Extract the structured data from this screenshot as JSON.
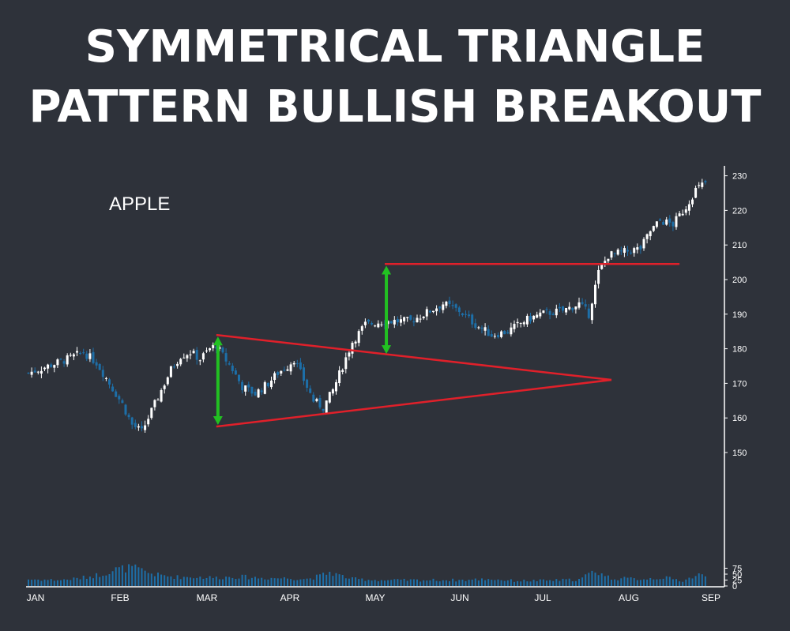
{
  "title": {
    "line1": "SYMMETRICAL TRIANGLE",
    "line2": "PATTERN BULLISH BREAKOUT"
  },
  "colors": {
    "background": "#2e323a",
    "text": "#ffffff",
    "up_candle": "#ffffff",
    "down_candle": "#1d6fa8",
    "volume_bar": "#1d6fa8",
    "trend_line": "#e0202a",
    "arrow": "#22c022"
  },
  "chart_data": {
    "type": "candlestick",
    "symbol": "APPLE",
    "months": [
      "JAN",
      "FEB",
      "MAR",
      "APR",
      "MAY",
      "JUN",
      "JUL",
      "AUG",
      "SEP"
    ],
    "price_axis": {
      "ticks": [
        150,
        160,
        170,
        180,
        190,
        200,
        210,
        220,
        230
      ],
      "side": "right"
    },
    "volume_axis": {
      "ticks": [
        0,
        25,
        50,
        75
      ],
      "side": "right"
    },
    "close_path": [
      {
        "d": 0,
        "c": 173
      },
      {
        "d": 6,
        "c": 175
      },
      {
        "d": 12,
        "c": 177
      },
      {
        "d": 17,
        "c": 179
      },
      {
        "d": 21,
        "c": 176
      },
      {
        "d": 25,
        "c": 170
      },
      {
        "d": 29,
        "c": 164
      },
      {
        "d": 32,
        "c": 158
      },
      {
        "d": 35,
        "c": 156
      },
      {
        "d": 38,
        "c": 162
      },
      {
        "d": 41,
        "c": 168
      },
      {
        "d": 44,
        "c": 174
      },
      {
        "d": 47,
        "c": 178
      },
      {
        "d": 50,
        "c": 179
      },
      {
        "d": 53,
        "c": 177
      },
      {
        "d": 56,
        "c": 180
      },
      {
        "d": 58,
        "c": 181
      },
      {
        "d": 60,
        "c": 178
      },
      {
        "d": 63,
        "c": 174
      },
      {
        "d": 66,
        "c": 169
      },
      {
        "d": 70,
        "c": 167
      },
      {
        "d": 74,
        "c": 170
      },
      {
        "d": 77,
        "c": 173
      },
      {
        "d": 80,
        "c": 175
      },
      {
        "d": 82,
        "c": 177
      },
      {
        "d": 85,
        "c": 171
      },
      {
        "d": 88,
        "c": 165
      },
      {
        "d": 91,
        "c": 163
      },
      {
        "d": 94,
        "c": 168
      },
      {
        "d": 97,
        "c": 175
      },
      {
        "d": 100,
        "c": 182
      },
      {
        "d": 104,
        "c": 187
      },
      {
        "d": 110,
        "c": 188
      },
      {
        "d": 118,
        "c": 188
      },
      {
        "d": 124,
        "c": 191
      },
      {
        "d": 128,
        "c": 193
      },
      {
        "d": 133,
        "c": 191
      },
      {
        "d": 138,
        "c": 187
      },
      {
        "d": 143,
        "c": 184
      },
      {
        "d": 148,
        "c": 185
      },
      {
        "d": 153,
        "c": 188
      },
      {
        "d": 158,
        "c": 190
      },
      {
        "d": 165,
        "c": 191
      },
      {
        "d": 170,
        "c": 193
      },
      {
        "d": 173,
        "c": 190
      },
      {
        "d": 176,
        "c": 202
      },
      {
        "d": 179,
        "c": 207
      },
      {
        "d": 184,
        "c": 208
      },
      {
        "d": 189,
        "c": 209
      },
      {
        "d": 192,
        "c": 214
      },
      {
        "d": 195,
        "c": 217
      },
      {
        "d": 199,
        "c": 216
      },
      {
        "d": 203,
        "c": 221
      },
      {
        "d": 206,
        "c": 226
      },
      {
        "d": 209,
        "c": 228
      }
    ],
    "volume_profile": [
      {
        "d": 0,
        "v": 28
      },
      {
        "d": 10,
        "v": 25
      },
      {
        "d": 16,
        "v": 33
      },
      {
        "d": 22,
        "v": 48
      },
      {
        "d": 27,
        "v": 70
      },
      {
        "d": 32,
        "v": 78
      },
      {
        "d": 36,
        "v": 60
      },
      {
        "d": 40,
        "v": 46
      },
      {
        "d": 46,
        "v": 38
      },
      {
        "d": 52,
        "v": 38
      },
      {
        "d": 58,
        "v": 35
      },
      {
        "d": 64,
        "v": 40
      },
      {
        "d": 72,
        "v": 34
      },
      {
        "d": 80,
        "v": 33
      },
      {
        "d": 86,
        "v": 30
      },
      {
        "d": 90,
        "v": 42
      },
      {
        "d": 93,
        "v": 58
      },
      {
        "d": 96,
        "v": 45
      },
      {
        "d": 100,
        "v": 30
      },
      {
        "d": 110,
        "v": 24
      },
      {
        "d": 125,
        "v": 25
      },
      {
        "d": 135,
        "v": 25
      },
      {
        "d": 142,
        "v": 30
      },
      {
        "d": 150,
        "v": 22
      },
      {
        "d": 160,
        "v": 23
      },
      {
        "d": 170,
        "v": 27
      },
      {
        "d": 175,
        "v": 64
      },
      {
        "d": 180,
        "v": 32
      },
      {
        "d": 190,
        "v": 30
      },
      {
        "d": 196,
        "v": 36
      },
      {
        "d": 202,
        "v": 22
      },
      {
        "d": 207,
        "v": 48
      },
      {
        "d": 209,
        "v": 38
      }
    ],
    "triangle": {
      "upper_line": [
        {
          "d": 58,
          "price": 184
        },
        {
          "d": 180,
          "price": 171
        }
      ],
      "lower_line": [
        {
          "d": 58,
          "price": 157.5
        },
        {
          "d": 180,
          "price": 171
        }
      ],
      "breakout_level": {
        "from_d": 110,
        "to_d": 201,
        "price": 204.5
      },
      "height_arrows": [
        {
          "d": 58.5,
          "from": 183.5,
          "to": 158
        },
        {
          "d": 110.5,
          "from": 178.5,
          "to": 204
        }
      ]
    }
  }
}
